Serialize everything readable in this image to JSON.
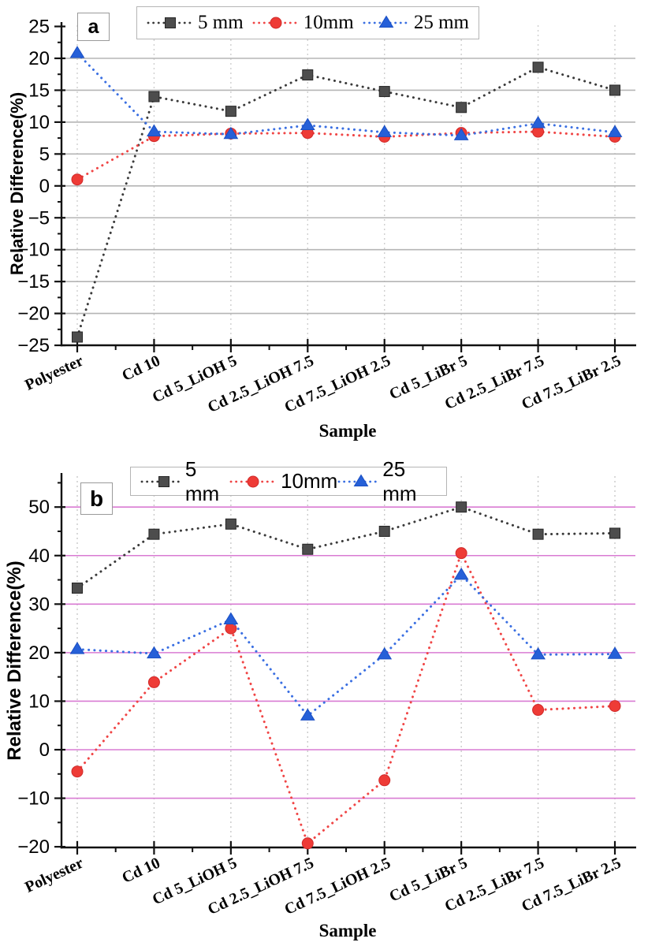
{
  "chart_data": [
    {
      "type": "line",
      "panel_label": "a",
      "xlabel": "Sample",
      "ylabel": "Relative Difference(%)",
      "categories": [
        "Polyester",
        "Cd 10",
        "Cd 5_LiOH 5",
        "Cd 2.5_LiOH 7.5",
        "Cd 7.5_LiOH 2.5",
        "Cd 5_LiBr 5",
        "Cd 2.5_LiBr 7.5",
        "Cd 7.5_LiBr 2.5"
      ],
      "series": [
        {
          "name": "5 mm",
          "marker": "square",
          "marker_color": "#4d4d4d",
          "edge_color": "#262626",
          "line_color": "#3a3a3a",
          "values": [
            -23.7,
            14.0,
            11.7,
            17.4,
            14.8,
            12.3,
            18.6,
            15.0
          ]
        },
        {
          "name": "10mm",
          "marker": "circle",
          "marker_color": "#ee3b36",
          "edge_color": "#d02a2a",
          "line_color": "#f04545",
          "values": [
            1.0,
            7.8,
            8.2,
            8.3,
            7.7,
            8.3,
            8.5,
            7.7
          ]
        },
        {
          "name": "25 mm",
          "marker": "triangle",
          "marker_color": "#2660d8",
          "edge_color": "#1a4fc4",
          "line_color": "#3a6fe2",
          "values": [
            20.8,
            8.5,
            8.1,
            9.5,
            8.4,
            7.9,
            9.8,
            8.4
          ]
        }
      ],
      "ylim": [
        -25,
        25
      ],
      "yticks": [
        -25,
        -20,
        -15,
        -10,
        -5,
        0,
        5,
        10,
        15,
        20,
        25
      ],
      "ygrid": [
        -20,
        -15,
        -10,
        -5,
        0,
        5,
        10,
        15,
        20
      ],
      "minor_step": 2.5,
      "grid": {
        "h_color": "#b5b5b5",
        "v_color": "#cfcfcf"
      },
      "legend_position": "top"
    },
    {
      "type": "line",
      "panel_label": "b",
      "xlabel": "Sample",
      "ylabel": "Relative Difference(%)",
      "categories": [
        "Polyester",
        "Cd 10",
        "Cd 5_LiOH 5",
        "Cd 2.5_LiOH 7.5",
        "Cd 7.5_LiOH 2.5",
        "Cd 5_LiBr 5",
        "Cd 2.5_LiBr 7.5",
        "Cd 7.5_LiBr 2.5"
      ],
      "series": [
        {
          "name": "5 mm",
          "marker": "square",
          "marker_color": "#4d4d4d",
          "edge_color": "#262626",
          "line_color": "#3a3a3a",
          "values": [
            33.3,
            44.4,
            46.5,
            41.3,
            45.0,
            50.0,
            44.4,
            44.6
          ]
        },
        {
          "name": "10mm",
          "marker": "circle",
          "marker_color": "#ee3b36",
          "edge_color": "#d02a2a",
          "line_color": "#f04545",
          "values": [
            -4.5,
            13.9,
            25.0,
            -19.3,
            -6.3,
            40.5,
            8.2,
            9.0
          ]
        },
        {
          "name": "25 mm",
          "marker": "triangle",
          "marker_color": "#2660d8",
          "edge_color": "#1a4fc4",
          "line_color": "#3a6fe2",
          "values": [
            20.7,
            19.8,
            26.8,
            7.0,
            19.6,
            36.0,
            19.6,
            19.7
          ]
        }
      ],
      "ylim": [
        -20,
        57
      ],
      "yticks": [
        -20,
        -10,
        0,
        10,
        20,
        30,
        40,
        50
      ],
      "ygrid": [
        -10,
        0,
        10,
        20,
        30,
        40,
        50
      ],
      "minor_step": 5,
      "grid": {
        "h_color": "#d97bd3",
        "v_color": "#c9c9c9"
      },
      "legend_position": "top"
    }
  ]
}
